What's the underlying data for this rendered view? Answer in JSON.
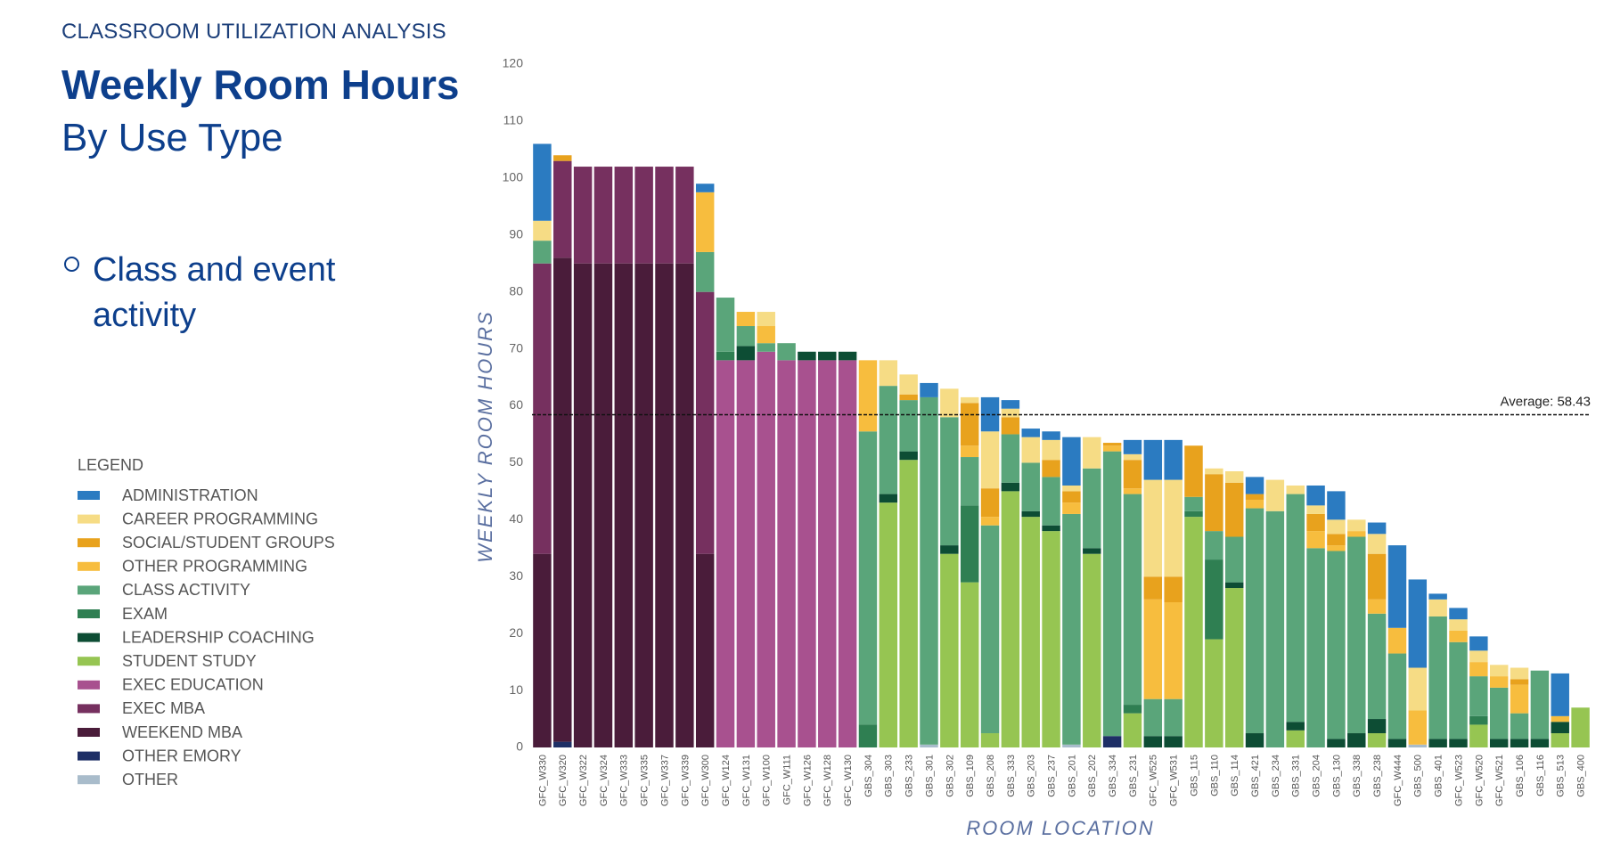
{
  "header": {
    "kicker": "CLASSROOM UTILIZATION ANALYSIS",
    "title": "Weekly Room Hours",
    "subtitle": "By Use Type",
    "bullet": "Class and event activity"
  },
  "chart_data": {
    "type": "stacked_bar",
    "legend_title": "LEGEND",
    "ylabel": "WEEKLY ROOM HOURS",
    "xlabel": "ROOM LOCATION",
    "ylim": [
      0,
      120
    ],
    "yticks": [
      0,
      10,
      20,
      30,
      40,
      50,
      60,
      70,
      80,
      90,
      100,
      110,
      120
    ],
    "grid": false,
    "average": {
      "value": 58.43,
      "label": "Average: 58.43"
    },
    "categories": [
      "GFC_W330",
      "GFC_W320",
      "GFC_W322",
      "GFC_W324",
      "GFC_W333",
      "GFC_W335",
      "GFC_W337",
      "GFC_W339",
      "GFC_W300",
      "GFC_W124",
      "GFC_W131",
      "GFC_W100",
      "GFC_W111",
      "GFC_W126",
      "GFC_W128",
      "GFC_W130",
      "GBS_304",
      "GBS_303",
      "GBS_233",
      "GBS_301",
      "GBS_302",
      "GBS_109",
      "GBS_208",
      "GBS_333",
      "GBS_203",
      "GBS_237",
      "GBS_201",
      "GBS_202",
      "GBS_334",
      "GBS_231",
      "GFC_W525",
      "GFC_W531",
      "GBS_115",
      "GBS_110",
      "GBS_114",
      "GBS_421",
      "GBS_234",
      "GBS_331",
      "GBS_204",
      "GBS_130",
      "GBS_338",
      "GBS_238",
      "GFC_W444",
      "GBS_500",
      "GBS_401",
      "GFC_W523",
      "GFC_W520",
      "GFC_W521",
      "GBS_106",
      "GBS_116",
      "GBS_513",
      "GBS_400"
    ],
    "series": [
      {
        "name": "ADMINISTRATION",
        "color": "#2b7bc1",
        "values": [
          13.5,
          0,
          0,
          0,
          0,
          0,
          0,
          0,
          1.5,
          0,
          0,
          0,
          0,
          0,
          0,
          0,
          0,
          0,
          0,
          2.5,
          0,
          0,
          6,
          1.5,
          1.5,
          1.5,
          8.5,
          0,
          0,
          2.5,
          7,
          7,
          0,
          0,
          0,
          3,
          0,
          0,
          3.5,
          5,
          0,
          2,
          14.5,
          15.5,
          1,
          2,
          2.5,
          0,
          0,
          0,
          7.5,
          0
        ]
      },
      {
        "name": "CAREER PROGRAMMING",
        "color": "#f6dc85",
        "values": [
          3.5,
          0,
          0,
          0,
          0,
          0,
          0,
          0,
          0,
          0,
          0,
          2.5,
          0,
          0,
          0,
          0,
          0,
          4.5,
          3.5,
          0,
          5,
          1,
          10,
          1.5,
          4.5,
          3.5,
          1,
          5.5,
          0,
          1,
          17,
          17,
          0,
          1,
          2,
          0,
          5.5,
          1.5,
          1.5,
          2.5,
          2,
          3.5,
          0,
          7.5,
          3,
          2,
          2,
          2,
          2,
          0,
          0,
          0
        ]
      },
      {
        "name": "SOCIAL/STUDENT GROUPS",
        "color": "#e8a21d",
        "values": [
          0,
          1,
          0,
          0,
          0,
          0,
          0,
          0,
          0,
          0,
          0,
          0,
          0,
          0,
          0,
          0,
          0,
          0,
          1,
          0,
          0,
          7.5,
          5,
          3,
          0,
          3,
          2,
          0,
          0.5,
          5,
          4,
          4.5,
          9,
          10,
          9.5,
          1,
          0,
          0,
          3,
          2,
          0,
          8,
          0,
          0,
          0,
          0,
          0,
          0,
          1,
          0,
          0,
          0
        ]
      },
      {
        "name": "OTHER PROGRAMMING",
        "color": "#f7bd3e",
        "values": [
          0,
          0,
          0,
          0,
          0,
          0,
          0,
          0,
          10.5,
          0,
          2.5,
          3,
          0,
          0,
          0,
          0,
          12.5,
          0,
          0,
          0,
          0,
          2,
          1.5,
          0,
          0,
          0,
          2,
          0,
          1,
          1,
          17.5,
          17,
          0,
          0,
          0,
          1.5,
          0,
          0,
          3,
          1,
          1,
          2.5,
          4.5,
          6,
          0,
          2,
          2.5,
          2,
          5,
          0,
          1,
          0
        ]
      },
      {
        "name": "CLASS ACTIVITY",
        "color": "#5aa57a",
        "values": [
          4,
          0,
          0,
          0,
          0,
          0,
          0,
          0,
          7,
          9.5,
          3.5,
          1.5,
          3,
          0,
          0,
          0,
          51.5,
          19,
          9,
          61,
          22.5,
          8.5,
          36.5,
          8.5,
          8.5,
          8.5,
          40.5,
          14,
          50,
          37,
          6.5,
          6.5,
          2.5,
          5,
          8,
          39.5,
          41.5,
          40,
          35,
          33,
          34.5,
          18.5,
          15,
          0,
          21.5,
          17,
          7,
          9,
          4.5,
          12,
          0,
          0
        ]
      },
      {
        "name": "EXAM",
        "color": "#2f7f52",
        "values": [
          0,
          0,
          0,
          0,
          0,
          0,
          0,
          0,
          0,
          1.5,
          0,
          0,
          0,
          0,
          0,
          0,
          4,
          0,
          0,
          0,
          0,
          13.5,
          0,
          0,
          0,
          0,
          0,
          0,
          0,
          1.5,
          0,
          0,
          1,
          14,
          0,
          0,
          0,
          0,
          0,
          0,
          0,
          0,
          0,
          0,
          0,
          0,
          1.5,
          0,
          0,
          0,
          0,
          0
        ]
      },
      {
        "name": "LEADERSHIP COACHING",
        "color": "#0d4d34",
        "values": [
          0,
          0,
          0,
          0,
          0,
          0,
          0,
          0,
          0,
          0,
          2.5,
          0,
          0,
          1.5,
          1.5,
          1.5,
          0,
          1.5,
          1.5,
          0,
          1.5,
          0,
          0,
          1.5,
          1,
          1,
          0,
          1,
          0,
          0,
          2,
          2,
          0,
          0,
          1,
          2.5,
          0,
          1.5,
          0,
          1.5,
          2.5,
          2.5,
          1.5,
          0,
          1.5,
          1.5,
          0,
          1.5,
          1.5,
          1.5,
          2,
          0
        ]
      },
      {
        "name": "STUDENT STUDY",
        "color": "#96c552",
        "values": [
          0,
          0,
          0,
          0,
          0,
          0,
          0,
          0,
          0,
          0,
          0,
          0,
          0,
          0,
          0,
          0,
          0,
          43,
          50.5,
          0,
          34,
          29,
          2.5,
          45,
          40.5,
          38,
          0,
          34,
          0,
          6,
          0,
          0,
          40.5,
          19,
          28,
          0,
          0,
          3,
          0,
          0,
          0,
          2.5,
          0,
          0,
          0,
          0,
          4,
          0,
          0,
          0,
          2.5,
          7
        ]
      },
      {
        "name": "EXEC EDUCATION",
        "color": "#a8518f",
        "values": [
          0,
          0,
          0,
          0,
          0,
          0,
          0,
          0,
          0,
          68,
          68,
          69.5,
          68,
          68,
          68,
          68,
          0,
          0,
          0,
          0,
          0,
          0,
          0,
          0,
          0,
          0,
          0,
          0,
          0,
          0,
          0,
          0,
          0,
          0,
          0,
          0,
          0,
          0,
          0,
          0,
          0,
          0,
          0,
          0,
          0,
          0,
          0,
          0,
          0,
          0,
          0,
          0
        ]
      },
      {
        "name": "EXEC MBA",
        "color": "#76305f",
        "values": [
          51,
          17,
          17,
          17,
          17,
          17,
          17,
          17,
          46,
          0,
          0,
          0,
          0,
          0,
          0,
          0,
          0,
          0,
          0,
          0,
          0,
          0,
          0,
          0,
          0,
          0,
          0,
          0,
          0,
          0,
          0,
          0,
          0,
          0,
          0,
          0,
          0,
          0,
          0,
          0,
          0,
          0,
          0,
          0,
          0,
          0,
          0,
          0,
          0,
          0,
          0,
          0
        ]
      },
      {
        "name": "WEEKEND MBA",
        "color": "#4a1c3a",
        "values": [
          34,
          85,
          85,
          85,
          85,
          85,
          85,
          85,
          34,
          0,
          0,
          0,
          0,
          0,
          0,
          0,
          0,
          0,
          0,
          0,
          0,
          0,
          0,
          0,
          0,
          0,
          0,
          0,
          0,
          0,
          0,
          0,
          0,
          0,
          0,
          0,
          0,
          0,
          0,
          0,
          0,
          0,
          0,
          0,
          0,
          0,
          0,
          0,
          0,
          0,
          0,
          0
        ]
      },
      {
        "name": "OTHER EMORY",
        "color": "#1e2f66",
        "values": [
          0,
          1,
          0,
          0,
          0,
          0,
          0,
          0,
          0,
          0,
          0,
          0,
          0,
          0,
          0,
          0,
          0,
          0,
          0,
          0,
          0,
          0,
          0,
          0,
          0,
          0,
          0,
          0,
          2,
          0,
          0,
          0,
          0,
          0,
          0,
          0,
          0,
          0,
          0,
          0,
          0,
          0,
          0,
          0,
          0,
          0,
          0,
          0,
          0,
          0,
          0,
          0
        ]
      },
      {
        "name": "OTHER",
        "color": "#a9bccb",
        "values": [
          0,
          0,
          0,
          0,
          0,
          0,
          0,
          0,
          0,
          0,
          0,
          0,
          0,
          0,
          0,
          0,
          0,
          0,
          0,
          0.5,
          0,
          0,
          0,
          0,
          0,
          0,
          0.5,
          0,
          0,
          0,
          0,
          0,
          0,
          0,
          0,
          0,
          0,
          0,
          0,
          0,
          0,
          0,
          0,
          0.5,
          0,
          0,
          0,
          0,
          0,
          0,
          0,
          0
        ]
      }
    ]
  }
}
